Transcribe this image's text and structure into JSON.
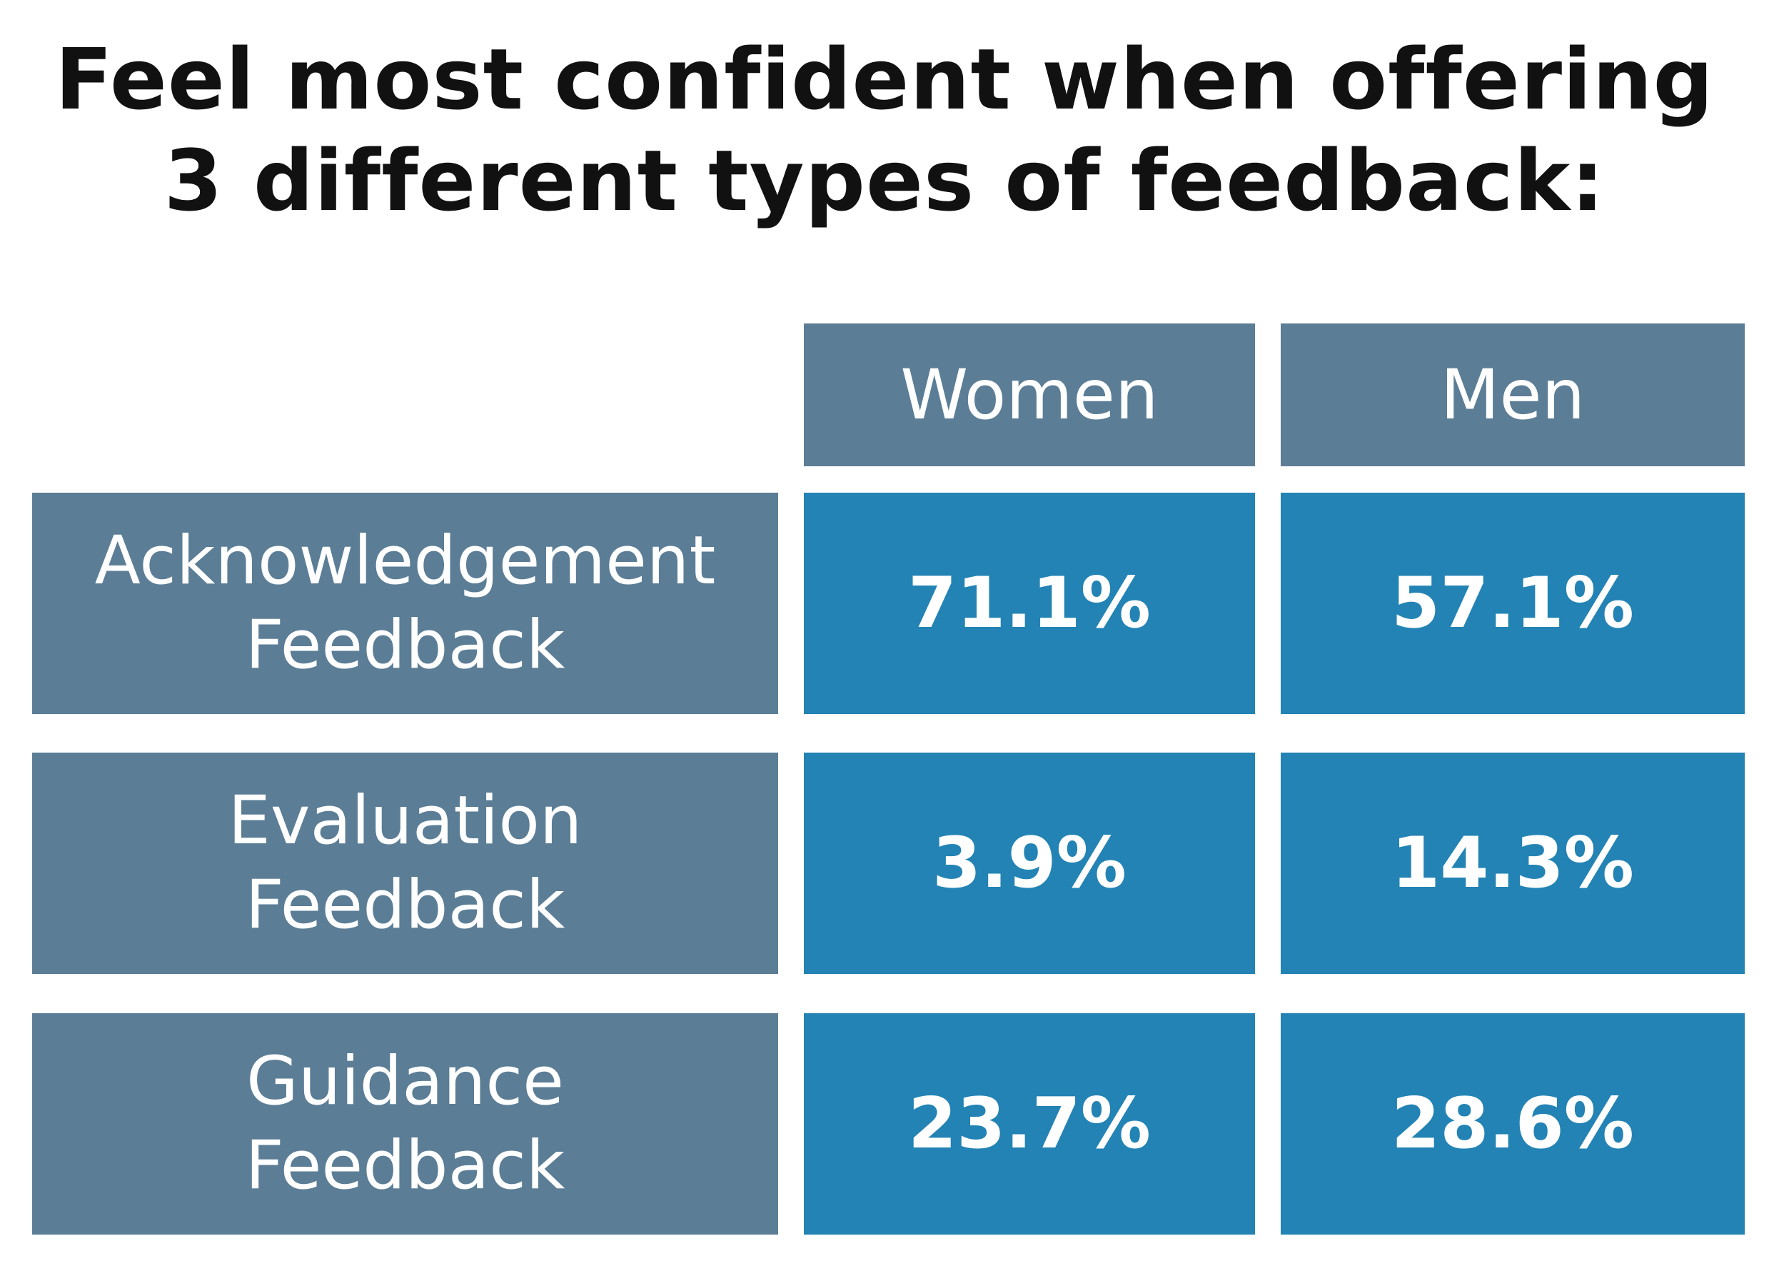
{
  "chart_data": {
    "type": "table",
    "title_lines": [
      "Feel most confident when offering",
      "3 different types of feedback:"
    ],
    "columns": [
      "Women",
      "Men"
    ],
    "rows": [
      {
        "label_lines": [
          "Acknowledgement",
          "Feedback"
        ],
        "values": [
          "71.1%",
          "57.1%"
        ]
      },
      {
        "label_lines": [
          "Evaluation",
          "Feedback"
        ],
        "values": [
          "3.9%",
          "14.3%"
        ]
      },
      {
        "label_lines": [
          "Guidance",
          "Feedback"
        ],
        "values": [
          "23.7%",
          "28.6%"
        ]
      }
    ],
    "numeric_values": {
      "Women": [
        71.1,
        3.9,
        23.7
      ],
      "Men": [
        57.1,
        14.3,
        28.6
      ]
    },
    "colors": {
      "header_bg": "#5b7d96",
      "value_bg": "#2283b4",
      "text": "#ffffff",
      "title_text": "#111111"
    }
  }
}
